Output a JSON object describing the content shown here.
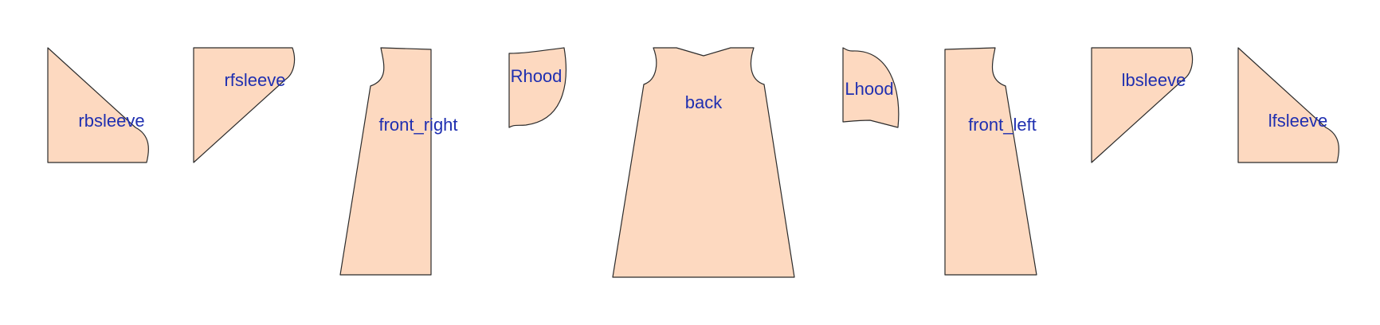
{
  "colors": {
    "piece_fill": "#fdd9c0",
    "label_color": "#1f2fb0"
  },
  "pieces": [
    {
      "id": "rbsleeve",
      "label": "rbsleeve"
    },
    {
      "id": "rfsleeve",
      "label": "rfsleeve"
    },
    {
      "id": "front-right",
      "label": "front_right"
    },
    {
      "id": "rhood",
      "label": "Rhood"
    },
    {
      "id": "back",
      "label": "back"
    },
    {
      "id": "lhood",
      "label": "Lhood"
    },
    {
      "id": "front-left",
      "label": "front_left"
    },
    {
      "id": "lbsleeve",
      "label": "lbsleeve"
    },
    {
      "id": "lfsleeve",
      "label": "lfsleeve"
    }
  ]
}
